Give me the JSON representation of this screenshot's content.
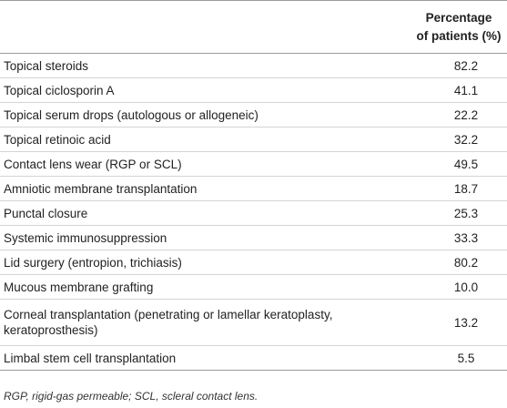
{
  "table": {
    "header": {
      "label_column": "",
      "value_column_line1": "Percentage",
      "value_column_line2": "of patients (%)"
    },
    "rows": [
      {
        "label": "Topical steroids",
        "value": "82.2"
      },
      {
        "label": "Topical ciclosporin A",
        "value": "41.1"
      },
      {
        "label": "Topical serum drops (autologous or allogeneic)",
        "value": "22.2"
      },
      {
        "label": "Topical retinoic acid",
        "value": "32.2"
      },
      {
        "label": "Contact lens wear (RGP or SCL)",
        "value": "49.5"
      },
      {
        "label": "Amniotic membrane transplantation",
        "value": "18.7"
      },
      {
        "label": "Punctal closure",
        "value": "25.3"
      },
      {
        "label": "Systemic immunosuppression",
        "value": "33.3"
      },
      {
        "label": "Lid surgery (entropion, trichiasis)",
        "value": "80.2"
      },
      {
        "label": "Mucous membrane grafting",
        "value": "10.0"
      },
      {
        "label": "Corneal transplantation (penetrating or lamellar keratoplasty, keratoprosthesis)",
        "value": "13.2"
      },
      {
        "label": "Limbal stem cell transplantation",
        "value": "5.5"
      }
    ]
  },
  "footnote": "RGP, rigid-gas permeable; SCL, scleral contact lens."
}
